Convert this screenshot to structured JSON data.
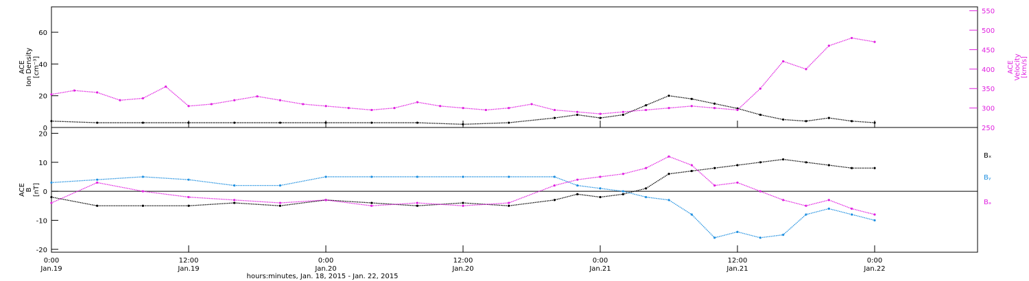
{
  "chart_data": [
    {
      "type": "scatter",
      "panel": "top",
      "ylabel_left": [
        "ACE",
        "Ion Density",
        "[cm⁻³]"
      ],
      "ylabel_right": [
        "ACE",
        "Velocity",
        "[km/s]"
      ],
      "ylim_left": [
        0,
        76
      ],
      "yticks_left": [
        0,
        20,
        40,
        60
      ],
      "ylim_right": [
        250,
        560
      ],
      "yticks_right": [
        250,
        300,
        350,
        400,
        450,
        500,
        550
      ],
      "series": [
        {
          "axis": "left",
          "color": "#000000",
          "x": [
            0,
            4,
            8,
            12,
            16,
            20,
            24,
            28,
            32,
            36,
            40,
            44,
            46,
            48,
            50,
            52,
            54,
            56,
            58,
            60,
            62,
            64,
            66,
            68,
            70,
            72
          ],
          "y": [
            4,
            3,
            3,
            3,
            3,
            3,
            3,
            3,
            3,
            2,
            3,
            6,
            8,
            6,
            8,
            14,
            20,
            18,
            15,
            12,
            8,
            5,
            4,
            6,
            4,
            3
          ]
        },
        {
          "axis": "right",
          "color": "#e020e0",
          "x": [
            0,
            2,
            4,
            6,
            8,
            10,
            12,
            14,
            16,
            18,
            20,
            22,
            24,
            26,
            28,
            30,
            32,
            34,
            36,
            38,
            40,
            42,
            44,
            46,
            48,
            50,
            52,
            54,
            56,
            58,
            60,
            62,
            64,
            66,
            68,
            70,
            72
          ],
          "y": [
            335,
            345,
            340,
            320,
            325,
            355,
            305,
            310,
            320,
            330,
            320,
            310,
            305,
            300,
            295,
            300,
            315,
            305,
            300,
            295,
            300,
            310,
            295,
            290,
            285,
            290,
            295,
            300,
            305,
            300,
            295,
            350,
            420,
            400,
            460,
            480,
            470
          ]
        }
      ]
    },
    {
      "type": "scatter",
      "panel": "bottom",
      "ylabel_left": [
        "ACE",
        "B",
        "[nT]"
      ],
      "ylim": [
        -21,
        22
      ],
      "yticks": [
        -20,
        -10,
        0,
        10,
        20
      ],
      "legend": [
        "Bₓ",
        "Bᵧ",
        "Bₔ"
      ],
      "series": [
        {
          "name": "Bx",
          "color": "#000000",
          "x": [
            0,
            4,
            8,
            12,
            16,
            20,
            24,
            28,
            32,
            36,
            40,
            44,
            46,
            48,
            50,
            52,
            54,
            56,
            58,
            60,
            62,
            64,
            66,
            68,
            70,
            72
          ],
          "y": [
            -2,
            -5,
            -5,
            -5,
            -4,
            -5,
            -3,
            -4,
            -5,
            -4,
            -5,
            -3,
            -1,
            -2,
            -1,
            1,
            6,
            7,
            8,
            9,
            10,
            11,
            10,
            9,
            8,
            8
          ]
        },
        {
          "name": "By",
          "color": "#1e8fe0",
          "x": [
            0,
            4,
            8,
            12,
            16,
            20,
            24,
            28,
            32,
            36,
            40,
            44,
            46,
            48,
            50,
            52,
            54,
            56,
            58,
            60,
            62,
            64,
            66,
            68,
            70,
            72
          ],
          "y": [
            3,
            4,
            5,
            4,
            2,
            2,
            5,
            5,
            5,
            5,
            5,
            5,
            2,
            1,
            0,
            -2,
            -3,
            -8,
            -16,
            -14,
            -16,
            -15,
            -8,
            -6,
            -8,
            -10
          ]
        },
        {
          "name": "Bz",
          "color": "#e020e0",
          "x": [
            0,
            4,
            8,
            12,
            16,
            20,
            24,
            28,
            32,
            36,
            40,
            44,
            46,
            48,
            50,
            52,
            54,
            56,
            58,
            60,
            62,
            64,
            66,
            68,
            70,
            72
          ],
          "y": [
            -4,
            3,
            0,
            -2,
            -3,
            -4,
            -3,
            -5,
            -4,
            -5,
            -4,
            2,
            4,
            5,
            6,
            8,
            12,
            9,
            2,
            3,
            0,
            -3,
            -5,
            -3,
            -6,
            -8
          ]
        }
      ],
      "x_ticks": [
        {
          "x": 0,
          "time": "0:00",
          "date": "Jan.19"
        },
        {
          "x": 12,
          "time": "12:00",
          "date": "Jan.19"
        },
        {
          "x": 24,
          "time": "0:00",
          "date": "Jan.20"
        },
        {
          "x": 36,
          "time": "12:00",
          "date": "Jan.20"
        },
        {
          "x": 48,
          "time": "0:00",
          "date": "Jan.21"
        },
        {
          "x": 60,
          "time": "12:00",
          "date": "Jan.21"
        },
        {
          "x": 72,
          "time": "0:00",
          "date": "Jan.22"
        }
      ],
      "xlim": [
        0,
        81
      ],
      "xlabel": "hours:minutes, Jan. 18, 2015 - Jan. 22, 2015"
    }
  ]
}
